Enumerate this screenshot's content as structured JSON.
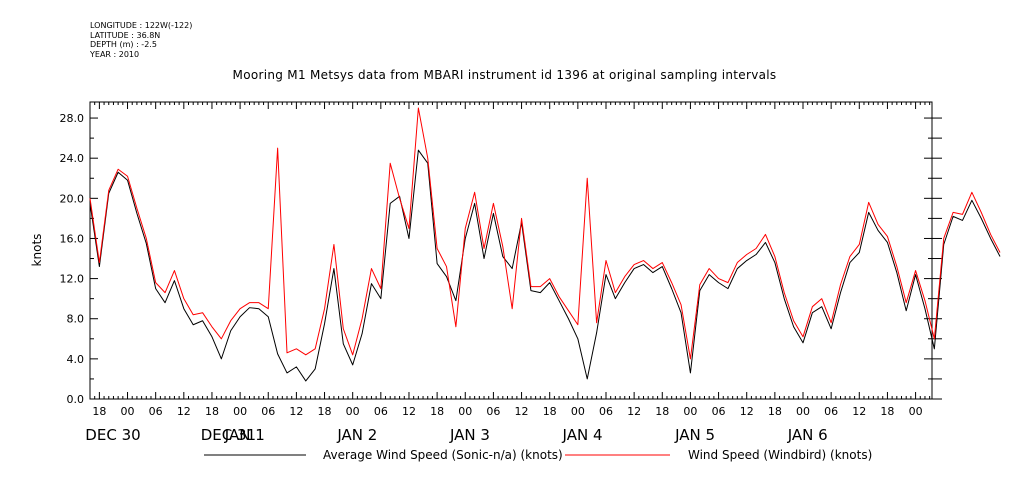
{
  "header": {
    "longitude": "LONGITUDE : 122W(-122)",
    "latitude": "LATITUDE : 36.8N",
    "depth": "DEPTH (m) : -2.5",
    "year": "YEAR : 2010"
  },
  "chart_data": {
    "type": "line",
    "title": "Mooring M1 Metsys data from MBARI instrument id 1396 at original sampling intervals",
    "xlabel": "",
    "ylabel": "knots",
    "ylim": [
      0,
      29.6
    ],
    "xlim_hours_from_dec30_00": [
      -8,
      171.5
    ],
    "y_ticks": [
      "0.0",
      "4.0",
      "8.0",
      "12.0",
      "16.0",
      "20.0",
      "24.0",
      "28.0"
    ],
    "x_hour_ticks": [
      "18",
      "00",
      "06",
      "12",
      "18",
      "00",
      "06",
      "12",
      "18",
      "00",
      "06",
      "12",
      "18",
      "00",
      "06",
      "12",
      "18",
      "00",
      "06",
      "12",
      "18",
      "00",
      "06",
      "12",
      "18",
      "00",
      "06",
      "12",
      "18",
      "00",
      "06",
      "12"
    ],
    "x_date_labels": [
      "DEC 30",
      "DEC 31",
      "JAN 1",
      "JAN 2",
      "JAN 3",
      "JAN 4",
      "JAN 5",
      "JAN 6"
    ],
    "series": [
      {
        "name": "Average Wind Speed (Sonic-n/a) (knots)",
        "color": "#000000",
        "points": [
          [
            "2009-12-29 16:00",
            19.5
          ],
          [
            "2009-12-29 18:00",
            13.2
          ],
          [
            "2009-12-29 20:00",
            20.5
          ],
          [
            "2009-12-29 22:00",
            22.6
          ],
          [
            "2009-12-30 00:00",
            21.8
          ],
          [
            "2009-12-30 02:00",
            18.5
          ],
          [
            "2009-12-30 04:00",
            15.5
          ],
          [
            "2009-12-30 06:00",
            11.0
          ],
          [
            "2009-12-30 08:00",
            9.6
          ],
          [
            "2009-12-30 10:00",
            11.8
          ],
          [
            "2009-12-30 12:00",
            9.0
          ],
          [
            "2009-12-30 14:00",
            7.4
          ],
          [
            "2009-12-30 16:00",
            7.8
          ],
          [
            "2009-12-30 18:00",
            6.2
          ],
          [
            "2009-12-30 20:00",
            4.0
          ],
          [
            "2009-12-30 22:00",
            6.8
          ],
          [
            "2009-12-31 00:00",
            8.2
          ],
          [
            "2009-12-31 02:00",
            9.1
          ],
          [
            "2009-12-31 04:00",
            9.0
          ],
          [
            "2009-12-31 06:00",
            8.2
          ],
          [
            "2009-12-31 08:00",
            4.5
          ],
          [
            "2009-12-31 10:00",
            2.6
          ],
          [
            "2009-12-31 12:00",
            3.2
          ],
          [
            "2009-12-31 14:00",
            1.8
          ],
          [
            "2009-12-31 16:00",
            3.0
          ],
          [
            "2009-12-31 18:00",
            7.5
          ],
          [
            "2009-12-31 20:00",
            13.0
          ],
          [
            "2009-12-31 22:00",
            5.5
          ],
          [
            "2010-01-01 00:00",
            3.4
          ],
          [
            "2010-01-01 02:00",
            6.5
          ],
          [
            "2010-01-01 04:00",
            11.5
          ],
          [
            "2010-01-01 06:00",
            10.0
          ],
          [
            "2010-01-01 08:00",
            19.5
          ],
          [
            "2010-01-01 10:00",
            20.2
          ],
          [
            "2010-01-01 12:00",
            16.0
          ],
          [
            "2010-01-01 14:00",
            24.8
          ],
          [
            "2010-01-01 16:00",
            23.5
          ],
          [
            "2010-01-01 18:00",
            13.5
          ],
          [
            "2010-01-01 20:00",
            12.2
          ],
          [
            "2010-01-01 22:00",
            9.8
          ],
          [
            "2010-01-02 00:00",
            16.0
          ],
          [
            "2010-01-02 02:00",
            19.5
          ],
          [
            "2010-01-02 04:00",
            14.0
          ],
          [
            "2010-01-02 06:00",
            18.5
          ],
          [
            "2010-01-02 08:00",
            14.2
          ],
          [
            "2010-01-02 10:00",
            13.0
          ],
          [
            "2010-01-02 12:00",
            17.6
          ],
          [
            "2010-01-02 14:00",
            10.8
          ],
          [
            "2010-01-02 16:00",
            10.6
          ],
          [
            "2010-01-02 18:00",
            11.6
          ],
          [
            "2010-01-02 20:00",
            9.8
          ],
          [
            "2010-01-02 22:00",
            8.0
          ],
          [
            "2010-01-03 00:00",
            6.0
          ],
          [
            "2010-01-03 02:00",
            2.0
          ],
          [
            "2010-01-03 04:00",
            6.6
          ],
          [
            "2010-01-03 06:00",
            12.4
          ],
          [
            "2010-01-03 08:00",
            10.0
          ],
          [
            "2010-01-03 10:00",
            11.6
          ],
          [
            "2010-01-03 12:00",
            13.0
          ],
          [
            "2010-01-03 14:00",
            13.4
          ],
          [
            "2010-01-03 16:00",
            12.6
          ],
          [
            "2010-01-03 18:00",
            13.2
          ],
          [
            "2010-01-03 20:00",
            11.0
          ],
          [
            "2010-01-03 22:00",
            8.6
          ],
          [
            "2010-01-04 00:00",
            2.6
          ],
          [
            "2010-01-04 02:00",
            10.8
          ],
          [
            "2010-01-04 04:00",
            12.4
          ],
          [
            "2010-01-04 06:00",
            11.6
          ],
          [
            "2010-01-04 08:00",
            11.0
          ],
          [
            "2010-01-04 10:00",
            13.0
          ],
          [
            "2010-01-04 12:00",
            13.8
          ],
          [
            "2010-01-04 14:00",
            14.4
          ],
          [
            "2010-01-04 16:00",
            15.6
          ],
          [
            "2010-01-04 18:00",
            13.6
          ],
          [
            "2010-01-04 20:00",
            10.0
          ],
          [
            "2010-01-04 22:00",
            7.2
          ],
          [
            "2010-01-05 00:00",
            5.6
          ],
          [
            "2010-01-05 02:00",
            8.6
          ],
          [
            "2010-01-05 04:00",
            9.2
          ],
          [
            "2010-01-05 06:00",
            7.0
          ],
          [
            "2010-01-05 08:00",
            10.6
          ],
          [
            "2010-01-05 10:00",
            13.6
          ],
          [
            "2010-01-05 12:00",
            14.6
          ],
          [
            "2010-01-05 14:00",
            18.6
          ],
          [
            "2010-01-05 16:00",
            16.8
          ],
          [
            "2010-01-05 18:00",
            15.6
          ],
          [
            "2010-01-05 20:00",
            12.6
          ],
          [
            "2010-01-05 22:00",
            8.8
          ],
          [
            "2010-01-06 00:00",
            12.4
          ],
          [
            "2010-01-06 02:00",
            9.0
          ],
          [
            "2010-01-06 04:00",
            5.0
          ],
          [
            "2010-01-06 06:00",
            15.4
          ],
          [
            "2010-01-06 08:00",
            18.2
          ],
          [
            "2010-01-06 10:00",
            17.8
          ],
          [
            "2010-01-06 12:00",
            19.8
          ],
          [
            "2010-01-06 14:00",
            18.0
          ],
          [
            "2010-01-06 16:00",
            16.0
          ],
          [
            "2010-01-06 18:00",
            14.2
          ]
        ]
      },
      {
        "name": "Wind Speed (Windbird) (knots)",
        "color": "#ff0000",
        "points": [
          [
            "2009-12-29 16:00",
            20.0
          ],
          [
            "2009-12-29 18:00",
            13.6
          ],
          [
            "2009-12-29 20:00",
            20.8
          ],
          [
            "2009-12-29 22:00",
            22.9
          ],
          [
            "2009-12-30 00:00",
            22.2
          ],
          [
            "2009-12-30 02:00",
            19.0
          ],
          [
            "2009-12-30 04:00",
            16.0
          ],
          [
            "2009-12-30 06:00",
            11.6
          ],
          [
            "2009-12-30 08:00",
            10.6
          ],
          [
            "2009-12-30 10:00",
            12.8
          ],
          [
            "2009-12-30 12:00",
            10.0
          ],
          [
            "2009-12-30 14:00",
            8.4
          ],
          [
            "2009-12-30 16:00",
            8.6
          ],
          [
            "2009-12-30 18:00",
            7.2
          ],
          [
            "2009-12-30 20:00",
            6.0
          ],
          [
            "2009-12-30 22:00",
            7.8
          ],
          [
            "2009-12-31 00:00",
            9.0
          ],
          [
            "2009-12-31 02:00",
            9.6
          ],
          [
            "2009-12-31 04:00",
            9.6
          ],
          [
            "2009-12-31 06:00",
            9.0
          ],
          [
            "2009-12-31 08:00",
            25.0
          ],
          [
            "2009-12-31 10:00",
            4.6
          ],
          [
            "2009-12-31 12:00",
            5.0
          ],
          [
            "2009-12-31 14:00",
            4.4
          ],
          [
            "2009-12-31 16:00",
            5.0
          ],
          [
            "2009-12-31 18:00",
            9.0
          ],
          [
            "2009-12-31 20:00",
            15.4
          ],
          [
            "2009-12-31 22:00",
            7.0
          ],
          [
            "2010-01-01 00:00",
            4.4
          ],
          [
            "2010-01-01 02:00",
            8.0
          ],
          [
            "2010-01-01 04:00",
            13.0
          ],
          [
            "2010-01-01 06:00",
            11.0
          ],
          [
            "2010-01-01 08:00",
            23.5
          ],
          [
            "2010-01-01 10:00",
            20.0
          ],
          [
            "2010-01-01 12:00",
            17.0
          ],
          [
            "2010-01-01 14:00",
            29.0
          ],
          [
            "2010-01-01 16:00",
            24.0
          ],
          [
            "2010-01-01 18:00",
            15.0
          ],
          [
            "2010-01-01 20:00",
            13.2
          ],
          [
            "2010-01-01 22:00",
            7.2
          ],
          [
            "2010-01-02 00:00",
            17.0
          ],
          [
            "2010-01-02 02:00",
            20.6
          ],
          [
            "2010-01-02 04:00",
            15.0
          ],
          [
            "2010-01-02 06:00",
            19.5
          ],
          [
            "2010-01-02 08:00",
            15.2
          ],
          [
            "2010-01-02 10:00",
            9.0
          ],
          [
            "2010-01-02 12:00",
            18.0
          ],
          [
            "2010-01-02 14:00",
            11.2
          ],
          [
            "2010-01-02 16:00",
            11.2
          ],
          [
            "2010-01-02 18:00",
            12.0
          ],
          [
            "2010-01-02 20:00",
            10.2
          ],
          [
            "2010-01-02 22:00",
            8.8
          ],
          [
            "2010-01-03 00:00",
            7.4
          ],
          [
            "2010-01-03 02:00",
            22.0
          ],
          [
            "2010-01-03 04:00",
            7.6
          ],
          [
            "2010-01-03 06:00",
            13.8
          ],
          [
            "2010-01-03 08:00",
            10.6
          ],
          [
            "2010-01-03 10:00",
            12.2
          ],
          [
            "2010-01-03 12:00",
            13.4
          ],
          [
            "2010-01-03 14:00",
            13.8
          ],
          [
            "2010-01-03 16:00",
            13.0
          ],
          [
            "2010-01-03 18:00",
            13.6
          ],
          [
            "2010-01-03 20:00",
            11.6
          ],
          [
            "2010-01-03 22:00",
            9.4
          ],
          [
            "2010-01-04 00:00",
            4.0
          ],
          [
            "2010-01-04 02:00",
            11.4
          ],
          [
            "2010-01-04 04:00",
            13.0
          ],
          [
            "2010-01-04 06:00",
            12.0
          ],
          [
            "2010-01-04 08:00",
            11.6
          ],
          [
            "2010-01-04 10:00",
            13.6
          ],
          [
            "2010-01-04 12:00",
            14.4
          ],
          [
            "2010-01-04 14:00",
            15.0
          ],
          [
            "2010-01-04 16:00",
            16.4
          ],
          [
            "2010-01-04 18:00",
            14.2
          ],
          [
            "2010-01-04 20:00",
            10.6
          ],
          [
            "2010-01-04 22:00",
            7.8
          ],
          [
            "2010-01-05 00:00",
            6.2
          ],
          [
            "2010-01-05 02:00",
            9.2
          ],
          [
            "2010-01-05 04:00",
            10.0
          ],
          [
            "2010-01-05 06:00",
            7.6
          ],
          [
            "2010-01-05 08:00",
            11.4
          ],
          [
            "2010-01-05 10:00",
            14.2
          ],
          [
            "2010-01-05 12:00",
            15.4
          ],
          [
            "2010-01-05 14:00",
            19.6
          ],
          [
            "2010-01-05 16:00",
            17.4
          ],
          [
            "2010-01-05 18:00",
            16.2
          ],
          [
            "2010-01-05 20:00",
            13.2
          ],
          [
            "2010-01-05 22:00",
            9.6
          ],
          [
            "2010-01-06 00:00",
            12.8
          ],
          [
            "2010-01-06 02:00",
            9.8
          ],
          [
            "2010-01-06 04:00",
            6.0
          ],
          [
            "2010-01-06 06:00",
            16.0
          ],
          [
            "2010-01-06 08:00",
            18.6
          ],
          [
            "2010-01-06 10:00",
            18.4
          ],
          [
            "2010-01-06 12:00",
            20.6
          ],
          [
            "2010-01-06 14:00",
            18.6
          ],
          [
            "2010-01-06 16:00",
            16.4
          ],
          [
            "2010-01-06 18:00",
            14.6
          ]
        ]
      }
    ],
    "grid": false,
    "legend_position": "bottom"
  }
}
